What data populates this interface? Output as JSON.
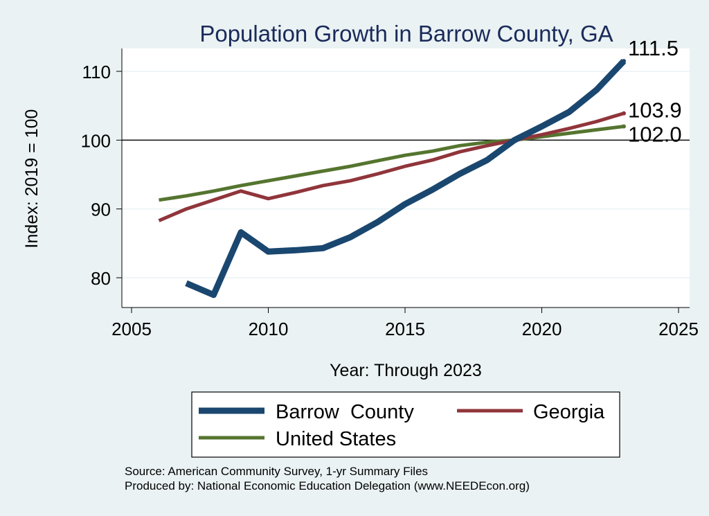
{
  "chart_data": {
    "type": "line",
    "title": "Population Growth in Barrow County, GA",
    "xlabel": "Year: Through 2023",
    "ylabel": "Index: 2019 = 100",
    "xlim": [
      2005,
      2025
    ],
    "ylim": [
      75,
      113
    ],
    "xticks": [
      2005,
      2010,
      2015,
      2020,
      2025
    ],
    "yticks": [
      80,
      90,
      100,
      110
    ],
    "reference_line": 100,
    "series": [
      {
        "name": "Barrow  County",
        "color": "#1a476f",
        "x": [
          2007,
          2008,
          2009,
          2010,
          2011,
          2012,
          2013,
          2014,
          2015,
          2016,
          2017,
          2018,
          2019,
          2020,
          2021,
          2022,
          2023
        ],
        "values": [
          79.2,
          77.5,
          86.6,
          83.8,
          84.0,
          84.3,
          85.9,
          88.1,
          90.7,
          92.8,
          95.1,
          97.1,
          100.0,
          102.0,
          104.1,
          107.3,
          111.5
        ],
        "end_label": "111.5"
      },
      {
        "name": "Georgia",
        "color": "#90353b",
        "x": [
          2006,
          2007,
          2008,
          2009,
          2010,
          2011,
          2012,
          2013,
          2014,
          2015,
          2016,
          2017,
          2018,
          2019,
          2020,
          2021,
          2022,
          2023
        ],
        "values": [
          88.3,
          90.0,
          91.3,
          92.6,
          91.5,
          92.4,
          93.4,
          94.1,
          95.1,
          96.2,
          97.1,
          98.3,
          99.2,
          100.0,
          100.8,
          101.7,
          102.7,
          103.9
        ],
        "end_label": "103.9"
      },
      {
        "name": "United States",
        "color": "#55752f",
        "x": [
          2006,
          2007,
          2008,
          2009,
          2010,
          2011,
          2012,
          2013,
          2014,
          2015,
          2016,
          2017,
          2018,
          2019,
          2020,
          2021,
          2022,
          2023
        ],
        "values": [
          91.3,
          91.9,
          92.6,
          93.4,
          94.1,
          94.8,
          95.5,
          96.2,
          97.0,
          97.8,
          98.4,
          99.2,
          99.7,
          100.0,
          100.5,
          101.0,
          101.5,
          102.0
        ],
        "end_label": "102.0"
      }
    ],
    "legend_position": "bottom"
  },
  "footer": {
    "source": "Source: American Community Survey, 1-yr Summary Files",
    "produced": "Produced by: National Economic Education Delegation (www.NEEDEcon.org)"
  }
}
